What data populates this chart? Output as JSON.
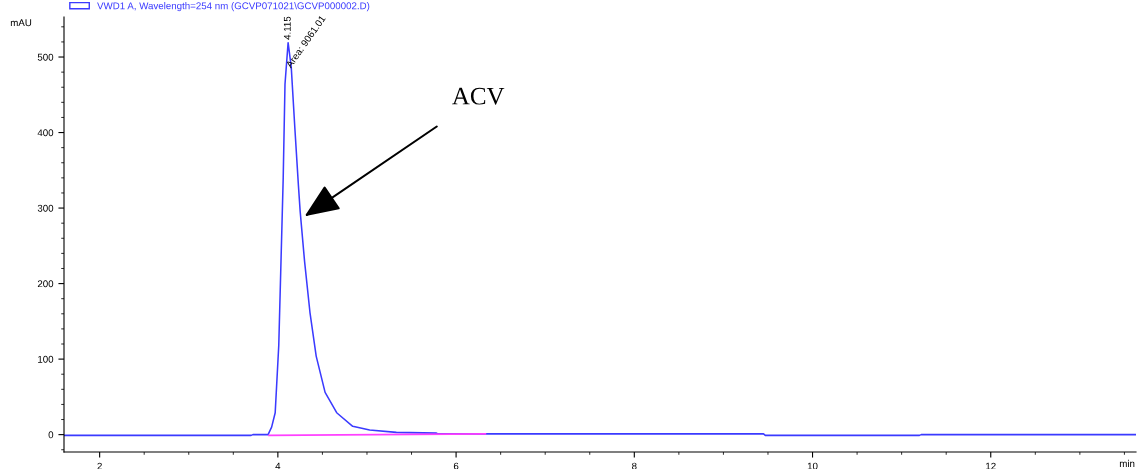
{
  "chart_data": {
    "type": "line",
    "xlabel": "min",
    "ylabel": "mAU",
    "xlim": [
      1.6,
      13.63
    ],
    "ylim": [
      -23,
      553
    ],
    "xticks": [
      2,
      4,
      6,
      8,
      10,
      12
    ],
    "yticks": [
      0,
      100,
      200,
      300,
      400,
      500
    ],
    "grid": false,
    "legend": "top left",
    "marker": "none",
    "line_style": "solid",
    "series": [
      {
        "name": "VWD1 A, Wavelength=254 nm (GCVP071021\\GCVP000002.D)",
        "color": "#3a3aff",
        "x": [
          1.6,
          3.7,
          3.72,
          3.89,
          3.93,
          3.97,
          4.01,
          4.04,
          4.06,
          4.08,
          4.115,
          4.15,
          4.19,
          4.23,
          4.25,
          4.3,
          4.36,
          4.43,
          4.53,
          4.66,
          4.84,
          5.03,
          5.33,
          5.78,
          5.8,
          9.45,
          9.47,
          11.2,
          11.22,
          13.63
        ],
        "values": [
          -1,
          -1,
          0,
          0,
          10,
          29,
          118,
          251,
          340,
          464,
          519,
          487,
          407,
          331,
          296,
          229,
          162,
          104,
          56,
          29,
          11,
          6,
          3,
          2,
          1,
          1,
          -1,
          -1,
          0,
          0
        ]
      },
      {
        "color": "#ff40ff",
        "x": [
          3.9,
          6.33
        ],
        "values": [
          -1,
          1
        ]
      }
    ],
    "annotations": [
      {
        "text": "4.115",
        "x": 4.115,
        "y": 519
      },
      {
        "text": "Area: 9061.01",
        "x": 4.15,
        "y": 487
      },
      {
        "text": "ACV",
        "x": 4.3,
        "y": 289
      }
    ]
  }
}
